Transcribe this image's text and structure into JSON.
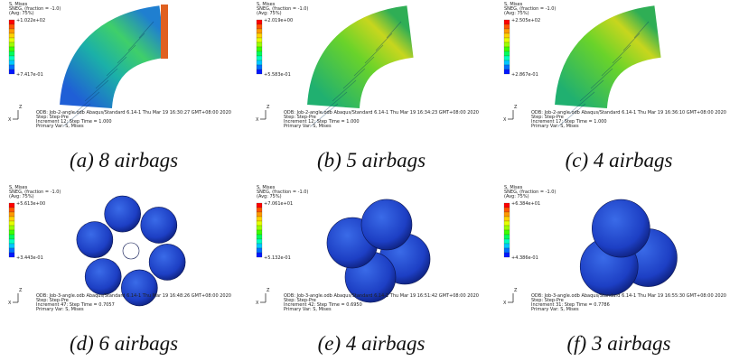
{
  "axes_labels": [
    "Z",
    "X"
  ],
  "legend_header": [
    "S, Mises",
    "SNEG, (fraction = -1.0)",
    "(Avg: 75%)"
  ],
  "panels": [
    {
      "caption": "(a) 8 airbags",
      "max": "+1.022e+02",
      "min": "+7.417e-01",
      "odb": "ODB: Job-2-angle.odb    Abaqus/Standard 6.14-1    Thu Mar 19 16:30:27 GMT+08:00 2020",
      "step": "Step: Step-Pre",
      "increment": "Increment    12: Step Time =    1.000",
      "primary": "Primary Var: S, Mises"
    },
    {
      "caption": "(b) 5 airbags",
      "max": "+2.019e+00",
      "min": "+5.583e-01",
      "odb": "ODB: Job-2-angle.odb    Abaqus/Standard 6.14-1    Thu Mar 19 16:34:23 GMT+08:00 2020",
      "step": "Step: Step-Pre",
      "increment": "Increment    12: Step Time =    1.000",
      "primary": "Primary Var: S, Mises"
    },
    {
      "caption": "(c) 4 airbags",
      "max": "+2.505e+02",
      "min": "+2.867e-01",
      "odb": "ODB: Job-2-angle.odb    Abaqus/Standard 6.14-1    Thu Mar 19 16:36:10 GMT+08:00 2020",
      "step": "Step: Step-Pre",
      "increment": "Increment    17: Step Time =    1.000",
      "primary": "Primary Var: S, Mises"
    },
    {
      "caption": "(d) 6 airbags",
      "max": "+5.613e+00",
      "min": "+3.443e-01",
      "odb": "ODB: Job-3-angle.odb    Abaqus/Standard 6.14-1    Thu Mar 19 16:48:26 GMT+08:00 2020",
      "step": "Step: Step-Pre",
      "increment": "Increment    47: Step Time =    0.7057",
      "primary": "Primary Var: S, Mises"
    },
    {
      "caption": "(e) 4 airbags",
      "max": "+7.061e+01",
      "min": "+5.132e-01",
      "odb": "ODB: Job-3-angle.odb    Abaqus/Standard 6.14-1    Thu Mar 19 16:51:42 GMT+08:00 2020",
      "step": "Step: Step-Pre",
      "increment": "Increment    42: Step Time =    0.6950",
      "primary": "Primary Var: S, Mises"
    },
    {
      "caption": "(f) 3 airbags",
      "max": "+6.384e+01",
      "min": "+4.386e-01",
      "odb": "ODB: Job-3-angle.odb    Abaqus/Standard 6.14-1    Thu Mar 19 16:55:30 GMT+08:00 2020",
      "step": "Step: Step-Pre",
      "increment": "Increment    31: Step Time =    0.7786",
      "primary": "Primary Var: S, Mises"
    }
  ]
}
